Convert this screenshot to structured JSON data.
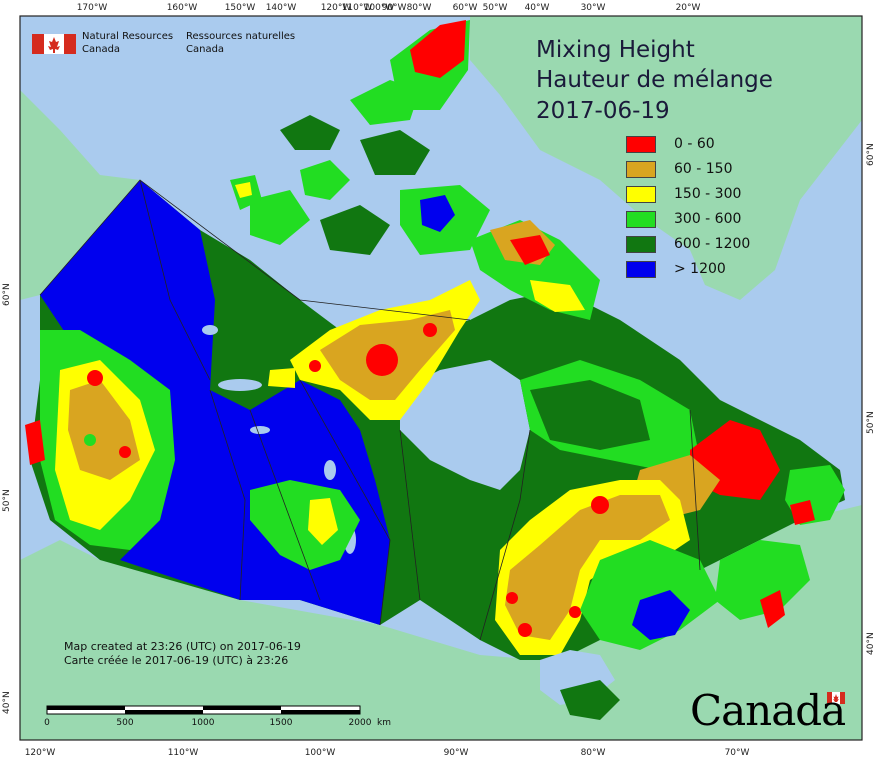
{
  "title": {
    "line1": "Mixing Height",
    "line2": "Hauteur de mélange",
    "date": "2017-06-19"
  },
  "agency": {
    "en_line1": "Natural Resources",
    "en_line2": "Canada",
    "fr_line1": "Ressources naturelles",
    "fr_line2": "Canada",
    "flag_icon": "canada-flag-icon"
  },
  "legend": [
    {
      "label": "0 - 60",
      "color": "#ff0000"
    },
    {
      "label": "60 - 150",
      "color": "#d9a520"
    },
    {
      "label": "150 - 300",
      "color": "#ffff00"
    },
    {
      "label": "300 - 600",
      "color": "#22dd22"
    },
    {
      "label": "600 - 1200",
      "color": "#117711"
    },
    {
      "label": "> 1200",
      "color": "#0000ee"
    }
  ],
  "graticule": {
    "top": [
      "170°W",
      "160°W",
      "150°W",
      "140°W",
      "120°W",
      "110°W",
      "100°W",
      "90°W",
      "80°W",
      "60°W",
      "50°W",
      "40°W",
      "30°W",
      "20°W"
    ],
    "bottom": [
      "120°W",
      "110°W",
      "100°W",
      "90°W",
      "80°W",
      "70°W"
    ],
    "left": [
      "60°N",
      "50°N",
      "40°N"
    ],
    "right": [
      "60°N",
      "50°N",
      "40°N"
    ]
  },
  "credit": {
    "line1": "Map created at 23:26 (UTC) on 2017-06-19",
    "line2": "Carte créée le 2017-06-19 (UTC) à 23:26"
  },
  "scale_bar": {
    "labels": [
      "0",
      "500",
      "1000",
      "1500",
      "2000"
    ],
    "unit": "km"
  },
  "wordmark": "Canada",
  "colors": {
    "ocean": "#aacbee",
    "land_foreign": "#9ad9b0",
    "border": "#222222"
  }
}
